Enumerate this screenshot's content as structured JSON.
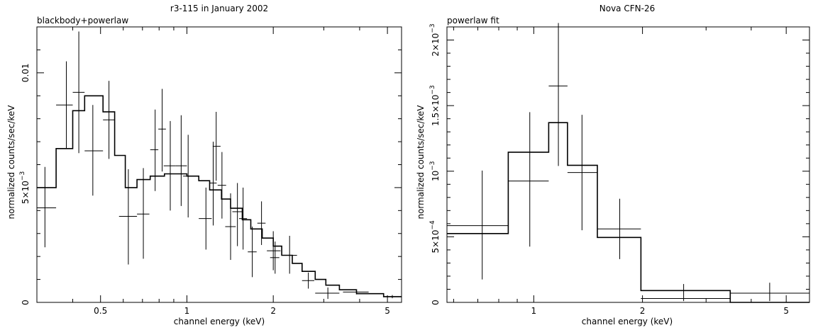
{
  "chart_data": [
    {
      "type": "scatter",
      "title": "r3-115 in January 2002",
      "annotation": "blackbody+powerlaw",
      "xlabel": "channel energy (keV)",
      "ylabel": "normalized counts/sec/keV",
      "xscale": "log",
      "xlim": [
        0.3,
        5.6
      ],
      "ylim": [
        0,
        0.012
      ],
      "x_ticks": [
        {
          "v": 0.5,
          "label": "0.5"
        },
        {
          "v": 1,
          "label": "1"
        },
        {
          "v": 2,
          "label": "2"
        },
        {
          "v": 5,
          "label": "5"
        }
      ],
      "y_ticks": [
        {
          "v": 0,
          "label": "0"
        },
        {
          "v": 0.005,
          "label": "5×10",
          "exp": "−3"
        },
        {
          "v": 0.01,
          "label": "0.01"
        }
      ],
      "data_points": [
        {
          "x": 0.32,
          "xlo": 0.3,
          "xhi": 0.35,
          "y": 0.00412,
          "ylo": 0.0024,
          "yhi": 0.0059
        },
        {
          "x": 0.38,
          "xlo": 0.35,
          "xhi": 0.4,
          "y": 0.0086,
          "ylo": 0.0067,
          "yhi": 0.0105
        },
        {
          "x": 0.42,
          "xlo": 0.4,
          "xhi": 0.44,
          "y": 0.00915,
          "ylo": 0.0065,
          "yhi": 0.0118
        },
        {
          "x": 0.47,
          "xlo": 0.44,
          "xhi": 0.51,
          "y": 0.0066,
          "ylo": 0.00465,
          "yhi": 0.0086
        },
        {
          "x": 0.535,
          "xlo": 0.51,
          "xhi": 0.56,
          "y": 0.00795,
          "ylo": 0.00625,
          "yhi": 0.00965
        },
        {
          "x": 0.625,
          "xlo": 0.58,
          "xhi": 0.67,
          "y": 0.00375,
          "ylo": 0.00165,
          "yhi": 0.0058
        },
        {
          "x": 0.705,
          "xlo": 0.67,
          "xhi": 0.74,
          "y": 0.00385,
          "ylo": 0.0019,
          "yhi": 0.00585
        },
        {
          "x": 0.775,
          "xlo": 0.745,
          "xhi": 0.795,
          "y": 0.00665,
          "ylo": 0.00485,
          "yhi": 0.0084
        },
        {
          "x": 0.82,
          "xlo": 0.795,
          "xhi": 0.845,
          "y": 0.00755,
          "ylo": 0.0057,
          "yhi": 0.0093
        },
        {
          "x": 0.875,
          "xlo": 0.83,
          "xhi": 0.915,
          "y": 0.00595,
          "ylo": 0.004,
          "yhi": 0.0079
        },
        {
          "x": 0.955,
          "xlo": 0.915,
          "xhi": 1.0,
          "y": 0.00595,
          "ylo": 0.0042,
          "yhi": 0.00815
        },
        {
          "x": 1.01,
          "xlo": 0.97,
          "xhi": 1.05,
          "y": 0.0055,
          "ylo": 0.0037,
          "yhi": 0.0073
        },
        {
          "x": 1.165,
          "xlo": 1.1,
          "xhi": 1.22,
          "y": 0.00365,
          "ylo": 0.0023,
          "yhi": 0.005
        },
        {
          "x": 1.235,
          "xlo": 1.2,
          "xhi": 1.27,
          "y": 0.0052,
          "ylo": 0.00335,
          "yhi": 0.007
        },
        {
          "x": 1.265,
          "xlo": 1.23,
          "xhi": 1.31,
          "y": 0.0068,
          "ylo": 0.0053,
          "yhi": 0.0083
        },
        {
          "x": 1.325,
          "xlo": 1.28,
          "xhi": 1.37,
          "y": 0.0051,
          "ylo": 0.00365,
          "yhi": 0.00655
        },
        {
          "x": 1.42,
          "xlo": 1.36,
          "xhi": 1.48,
          "y": 0.0033,
          "ylo": 0.00185,
          "yhi": 0.00475
        },
        {
          "x": 1.5,
          "xlo": 1.44,
          "xhi": 1.56,
          "y": 0.00395,
          "ylo": 0.00245,
          "yhi": 0.0052
        },
        {
          "x": 1.57,
          "xlo": 1.52,
          "xhi": 1.62,
          "y": 0.00365,
          "ylo": 0.0023,
          "yhi": 0.005
        },
        {
          "x": 1.69,
          "xlo": 1.63,
          "xhi": 1.75,
          "y": 0.0022,
          "ylo": 0.0011,
          "yhi": 0.0033
        },
        {
          "x": 1.82,
          "xlo": 1.76,
          "xhi": 1.88,
          "y": 0.00345,
          "ylo": 0.0025,
          "yhi": 0.0044
        },
        {
          "x": 2.0,
          "xlo": 1.9,
          "xhi": 2.12,
          "y": 0.00225,
          "ylo": 0.0014,
          "yhi": 0.0031
        },
        {
          "x": 2.03,
          "xlo": 1.95,
          "xhi": 2.1,
          "y": 0.00195,
          "ylo": 0.00125,
          "yhi": 0.00265
        },
        {
          "x": 2.28,
          "xlo": 2.14,
          "xhi": 2.42,
          "y": 0.00205,
          "ylo": 0.00125,
          "yhi": 0.0029
        },
        {
          "x": 2.65,
          "xlo": 2.52,
          "xhi": 2.78,
          "y": 0.00095,
          "ylo": 0.0006,
          "yhi": 0.0013
        },
        {
          "x": 3.1,
          "xlo": 2.8,
          "xhi": 3.4,
          "y": 0.0004,
          "ylo": 0.00015,
          "yhi": 0.00065
        },
        {
          "x": 3.9,
          "xlo": 3.5,
          "xhi": 4.3,
          "y": 0.00045,
          "ylo": 0.00035,
          "yhi": 0.00055
        },
        {
          "x": 5.2,
          "xlo": 4.85,
          "xhi": 5.6,
          "y": 0.00025,
          "ylo": 0.00018,
          "yhi": 0.00032
        }
      ],
      "model_steps": [
        {
          "x0": 0.3,
          "x1": 0.35,
          "y": 0.005
        },
        {
          "x0": 0.35,
          "x1": 0.4,
          "y": 0.0067
        },
        {
          "x0": 0.4,
          "x1": 0.44,
          "y": 0.00835
        },
        {
          "x0": 0.44,
          "x1": 0.51,
          "y": 0.009
        },
        {
          "x0": 0.51,
          "x1": 0.56,
          "y": 0.0083
        },
        {
          "x0": 0.56,
          "x1": 0.61,
          "y": 0.0064
        },
        {
          "x0": 0.61,
          "x1": 0.67,
          "y": 0.005
        },
        {
          "x0": 0.67,
          "x1": 0.745,
          "y": 0.00535
        },
        {
          "x0": 0.745,
          "x1": 0.835,
          "y": 0.0055
        },
        {
          "x0": 0.835,
          "x1": 1.0,
          "y": 0.0056
        },
        {
          "x0": 1.0,
          "x1": 1.1,
          "y": 0.0055
        },
        {
          "x0": 1.1,
          "x1": 1.2,
          "y": 0.0053
        },
        {
          "x0": 1.2,
          "x1": 1.32,
          "y": 0.0049
        },
        {
          "x0": 1.32,
          "x1": 1.42,
          "y": 0.0045
        },
        {
          "x0": 1.42,
          "x1": 1.56,
          "y": 0.0041
        },
        {
          "x0": 1.56,
          "x1": 1.67,
          "y": 0.0036
        },
        {
          "x0": 1.67,
          "x1": 1.83,
          "y": 0.0032
        },
        {
          "x0": 1.83,
          "x1": 2.0,
          "y": 0.0028
        },
        {
          "x0": 2.0,
          "x1": 2.14,
          "y": 0.00245
        },
        {
          "x0": 2.14,
          "x1": 2.33,
          "y": 0.00205
        },
        {
          "x0": 2.33,
          "x1": 2.52,
          "y": 0.0017
        },
        {
          "x0": 2.52,
          "x1": 2.8,
          "y": 0.00135
        },
        {
          "x0": 2.8,
          "x1": 3.05,
          "y": 0.001
        },
        {
          "x0": 3.05,
          "x1": 3.4,
          "y": 0.00075
        },
        {
          "x0": 3.4,
          "x1": 3.9,
          "y": 0.00055
        },
        {
          "x0": 3.9,
          "x1": 4.85,
          "y": 0.00038
        },
        {
          "x0": 4.85,
          "x1": 5.6,
          "y": 0.00025
        }
      ]
    },
    {
      "type": "scatter",
      "title": "Nova CFN-26",
      "annotation": "powerlaw fit",
      "xlabel": "channel energy (keV)",
      "ylabel": "normalized counts/sec/keV",
      "xscale": "log",
      "xlim": [
        0.575,
        5.8
      ],
      "ylim": [
        0,
        0.0021
      ],
      "x_ticks": [
        {
          "v": 1,
          "label": "1"
        },
        {
          "v": 2,
          "label": "2"
        },
        {
          "v": 5,
          "label": "5"
        }
      ],
      "y_ticks": [
        {
          "v": 0,
          "label": "0"
        },
        {
          "v": 0.0005,
          "label": "5×10",
          "exp": "−4"
        },
        {
          "v": 0.001,
          "label": "10",
          "exp": "−3"
        },
        {
          "v": 0.0015,
          "label": "1.5×10",
          "exp": "−3"
        },
        {
          "v": 0.002,
          "label": "2×10",
          "exp": "−3"
        }
      ],
      "data_points": [
        {
          "x": 0.72,
          "xlo": 0.575,
          "xhi": 0.85,
          "y": 0.000585,
          "ylo": 0.000175,
          "yhi": 0.001005
        },
        {
          "x": 0.975,
          "xlo": 0.85,
          "xhi": 1.1,
          "y": 0.000925,
          "ylo": 0.000425,
          "yhi": 0.00145
        },
        {
          "x": 1.17,
          "xlo": 1.1,
          "xhi": 1.24,
          "y": 0.00165,
          "ylo": 0.00104,
          "yhi": 0.00213
        },
        {
          "x": 1.36,
          "xlo": 1.24,
          "xhi": 1.5,
          "y": 0.00099,
          "ylo": 0.00055,
          "yhi": 0.00143
        },
        {
          "x": 1.73,
          "xlo": 1.5,
          "xhi": 1.98,
          "y": 0.00056,
          "ylo": 0.00033,
          "yhi": 0.00079
        },
        {
          "x": 2.6,
          "xlo": 1.98,
          "xhi": 3.5,
          "y": 3e-05,
          "ylo": 1e-05,
          "yhi": 0.00014
        },
        {
          "x": 4.5,
          "xlo": 3.5,
          "xhi": 5.8,
          "y": 7e-05,
          "ylo": 1e-05,
          "yhi": 0.00015
        }
      ],
      "model_steps": [
        {
          "x0": 0.575,
          "x1": 0.85,
          "y": 0.000525
        },
        {
          "x0": 0.85,
          "x1": 1.1,
          "y": 0.001145
        },
        {
          "x0": 1.1,
          "x1": 1.24,
          "y": 0.00137
        },
        {
          "x0": 1.24,
          "x1": 1.5,
          "y": 0.001045
        },
        {
          "x0": 1.5,
          "x1": 1.98,
          "y": 0.000495
        },
        {
          "x0": 1.98,
          "x1": 3.5,
          "y": 9e-05
        },
        {
          "x0": 3.5,
          "x1": 5.8,
          "y": 0.0
        }
      ]
    }
  ]
}
